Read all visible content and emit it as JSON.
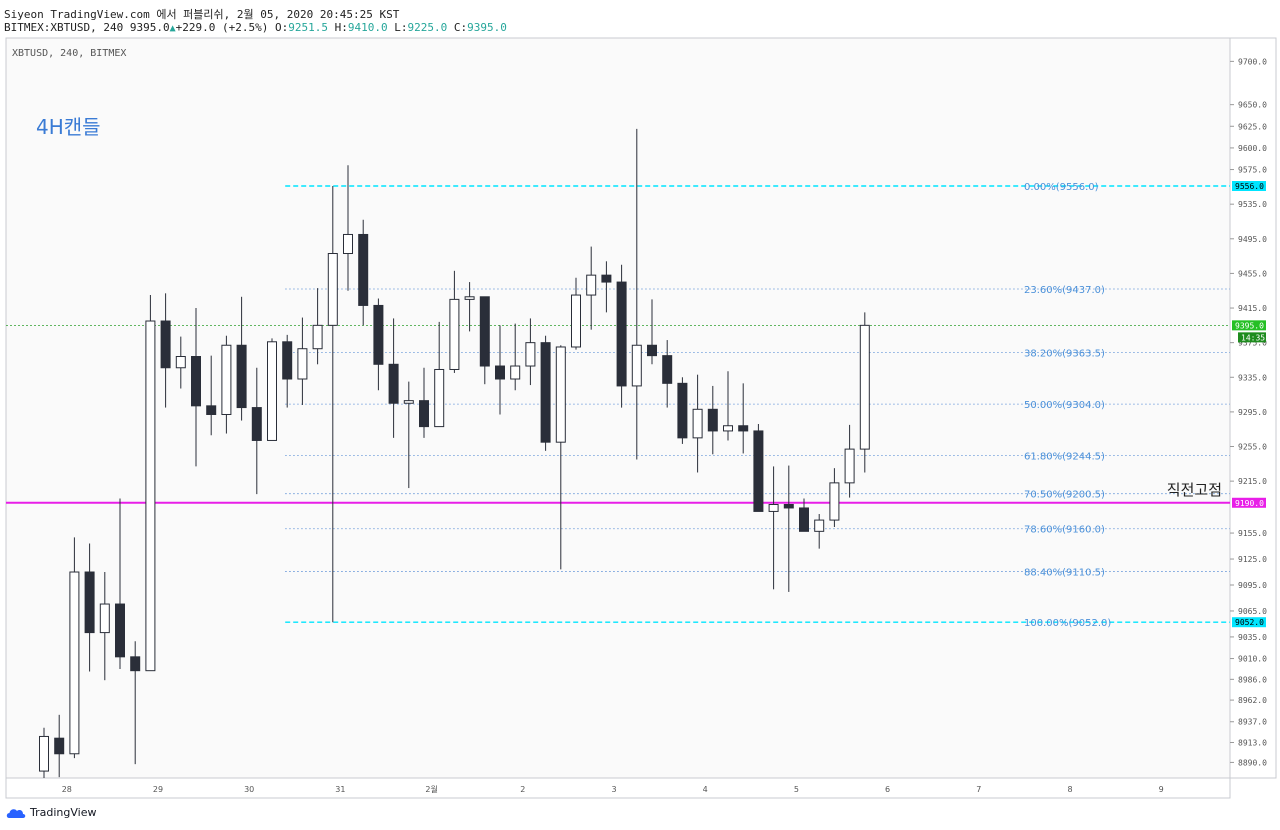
{
  "header": {
    "line1": "Siyeon TradingView.com 에서 퍼블리쉬, 2월 05, 2020 20:45:25 KST",
    "symbol": "BITMEX:XBTUSD, 240",
    "last": "9395.0",
    "change": "+229.0 (+2.5%)",
    "o_label": "O:",
    "o": "9251.5",
    "h_label": "H:",
    "h": "9410.0",
    "l_label": "L:",
    "l": "9225.0",
    "c_label": "C:",
    "c": "9395.0"
  },
  "footer": {
    "brand": "TradingView"
  },
  "colors": {
    "bear": "#2a2e39",
    "bull": "#ffffff",
    "fib_line": "#5b8fd6",
    "fib_edge": "#00e5ff",
    "fib_text": "#4a90d9",
    "support": "#e81ee8",
    "price_line": "#2ca02c",
    "annotation": "#3a7bd5"
  },
  "chart_data": {
    "type": "candlestick",
    "chart_label": "XBTUSD, 240, BITMEX",
    "annotation": "4H캔들",
    "support_label": "직전고점",
    "support_price": 9190.0,
    "support_tag": "9190.0",
    "current_price": 9395.0,
    "current_tag": "9395.0",
    "countdown": "14:35",
    "ylim": [
      8872,
      9727
    ],
    "y_ticks": [
      "9700.0",
      "9650.0",
      "9625.0",
      "9600.0",
      "9575.0",
      "9535.0",
      "9495.0",
      "9455.0",
      "9415.0",
      "9375.0",
      "9335.0",
      "9295.0",
      "9255.0",
      "9215.0",
      "9155.0",
      "9125.0",
      "9095.0",
      "9065.0",
      "9035.0",
      "9010.0",
      "8986.0",
      "8962.0",
      "8937.0",
      "8913.0",
      "8890.0"
    ],
    "x_labels": [
      {
        "label": "28",
        "i": 1.5
      },
      {
        "label": "29",
        "i": 7.5
      },
      {
        "label": "30",
        "i": 13.5
      },
      {
        "label": "31",
        "i": 19.5
      },
      {
        "label": "2월",
        "i": 25.5
      },
      {
        "label": "2",
        "i": 31.5
      },
      {
        "label": "3",
        "i": 37.5
      },
      {
        "label": "4",
        "i": 43.5
      },
      {
        "label": "5",
        "i": 49.5
      },
      {
        "label": "6",
        "i": 55.5
      },
      {
        "label": "7",
        "i": 61.5
      },
      {
        "label": "8",
        "i": 67.5
      },
      {
        "label": "9",
        "i": 73.5
      }
    ],
    "fib": {
      "start_index": 16,
      "levels": [
        {
          "label": "0.00%(9556.0)",
          "price": 9556.0,
          "edge": true,
          "tag": "9556.0"
        },
        {
          "label": "23.60%(9437.0)",
          "price": 9437.0
        },
        {
          "label": "38.20%(9363.5)",
          "price": 9363.5
        },
        {
          "label": "50.00%(9304.0)",
          "price": 9304.0
        },
        {
          "label": "61.80%(9244.5)",
          "price": 9244.5
        },
        {
          "label": "70.50%(9200.5)",
          "price": 9200.5
        },
        {
          "label": "78.60%(9160.0)",
          "price": 9160.0
        },
        {
          "label": "88.40%(9110.5)",
          "price": 9110.5
        },
        {
          "label": "100.00%(9052.0)",
          "price": 9052.0,
          "edge": true,
          "tag": "9052.0"
        }
      ]
    },
    "candles": [
      {
        "o": 8880,
        "h": 8930,
        "l": 8872,
        "c": 8920
      },
      {
        "o": 8918,
        "h": 8945,
        "l": 8873,
        "c": 8900
      },
      {
        "o": 8900,
        "h": 9150,
        "l": 8895,
        "c": 9110
      },
      {
        "o": 9110,
        "h": 9143,
        "l": 8995,
        "c": 9040
      },
      {
        "o": 9040,
        "h": 9110,
        "l": 8985,
        "c": 9073
      },
      {
        "o": 9073,
        "h": 9195,
        "l": 8998,
        "c": 9012
      },
      {
        "o": 9012,
        "h": 9030,
        "l": 8888,
        "c": 8996
      },
      {
        "o": 8996,
        "h": 9430,
        "l": 8996,
        "c": 9400
      },
      {
        "o": 9400,
        "h": 9432,
        "l": 9300,
        "c": 9346
      },
      {
        "o": 9346,
        "h": 9382,
        "l": 9322,
        "c": 9359
      },
      {
        "o": 9359,
        "h": 9415,
        "l": 9232,
        "c": 9302
      },
      {
        "o": 9302,
        "h": 9360,
        "l": 9268,
        "c": 9292
      },
      {
        "o": 9292,
        "h": 9383,
        "l": 9270,
        "c": 9372
      },
      {
        "o": 9372,
        "h": 9428,
        "l": 9285,
        "c": 9300
      },
      {
        "o": 9300,
        "h": 9346,
        "l": 9200,
        "c": 9262
      },
      {
        "o": 9262,
        "h": 9380,
        "l": 9262,
        "c": 9376
      },
      {
        "o": 9376,
        "h": 9384,
        "l": 9300,
        "c": 9333
      },
      {
        "o": 9333,
        "h": 9404,
        "l": 9303,
        "c": 9368
      },
      {
        "o": 9368,
        "h": 9438,
        "l": 9350,
        "c": 9395
      },
      {
        "o": 9395,
        "h": 9556,
        "l": 9052,
        "c": 9478
      },
      {
        "o": 9478,
        "h": 9580,
        "l": 9435,
        "c": 9500
      },
      {
        "o": 9500,
        "h": 9517,
        "l": 9395,
        "c": 9418
      },
      {
        "o": 9418,
        "h": 9426,
        "l": 9320,
        "c": 9350
      },
      {
        "o": 9350,
        "h": 9403,
        "l": 9265,
        "c": 9305
      },
      {
        "o": 9305,
        "h": 9330,
        "l": 9207,
        "c": 9308
      },
      {
        "o": 9308,
        "h": 9346,
        "l": 9265,
        "c": 9278
      },
      {
        "o": 9278,
        "h": 9399,
        "l": 9278,
        "c": 9344
      },
      {
        "o": 9344,
        "h": 9458,
        "l": 9340,
        "c": 9425
      },
      {
        "o": 9425,
        "h": 9445,
        "l": 9388,
        "c": 9428
      },
      {
        "o": 9428,
        "h": 9428,
        "l": 9327,
        "c": 9348
      },
      {
        "o": 9348,
        "h": 9395,
        "l": 9292,
        "c": 9333
      },
      {
        "o": 9333,
        "h": 9397,
        "l": 9320,
        "c": 9348
      },
      {
        "o": 9348,
        "h": 9403,
        "l": 9326,
        "c": 9375
      },
      {
        "o": 9375,
        "h": 9383,
        "l": 9250,
        "c": 9260
      },
      {
        "o": 9260,
        "h": 9372,
        "l": 9113,
        "c": 9370
      },
      {
        "o": 9370,
        "h": 9450,
        "l": 9367,
        "c": 9430
      },
      {
        "o": 9430,
        "h": 9486,
        "l": 9390,
        "c": 9453
      },
      {
        "o": 9453,
        "h": 9469,
        "l": 9410,
        "c": 9445
      },
      {
        "o": 9445,
        "h": 9465,
        "l": 9300,
        "c": 9325
      },
      {
        "o": 9325,
        "h": 9622,
        "l": 9240,
        "c": 9372
      },
      {
        "o": 9372,
        "h": 9425,
        "l": 9350,
        "c": 9360
      },
      {
        "o": 9360,
        "h": 9378,
        "l": 9300,
        "c": 9328
      },
      {
        "o": 9328,
        "h": 9335,
        "l": 9258,
        "c": 9265
      },
      {
        "o": 9265,
        "h": 9338,
        "l": 9225,
        "c": 9298
      },
      {
        "o": 9298,
        "h": 9325,
        "l": 9246,
        "c": 9273
      },
      {
        "o": 9273,
        "h": 9342,
        "l": 9262,
        "c": 9279
      },
      {
        "o": 9279,
        "h": 9328,
        "l": 9247,
        "c": 9273
      },
      {
        "o": 9273,
        "h": 9281,
        "l": 9180,
        "c": 9180
      },
      {
        "o": 9180,
        "h": 9232,
        "l": 9090,
        "c": 9188
      },
      {
        "o": 9188,
        "h": 9233,
        "l": 9087,
        "c": 9184
      },
      {
        "o": 9184,
        "h": 9195,
        "l": 9162,
        "c": 9157
      },
      {
        "o": 9157,
        "h": 9177,
        "l": 9137,
        "c": 9170
      },
      {
        "o": 9170,
        "h": 9230,
        "l": 9162,
        "c": 9213
      },
      {
        "o": 9213,
        "h": 9280,
        "l": 9196,
        "c": 9252
      },
      {
        "o": 9252,
        "h": 9410,
        "l": 9225,
        "c": 9395
      }
    ]
  }
}
